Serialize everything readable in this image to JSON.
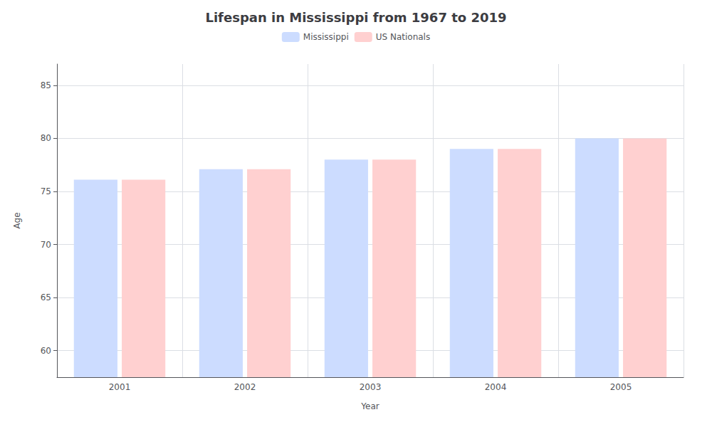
{
  "chart_data": {
    "type": "bar",
    "title": "Lifespan in Mississippi from 1967 to 2019",
    "xlabel": "Year",
    "ylabel": "Age",
    "categories": [
      "2001",
      "2002",
      "2003",
      "2004",
      "2005"
    ],
    "series": [
      {
        "name": "Mississippi",
        "color": "#ccdcff",
        "values": [
          76.1,
          77.1,
          78.0,
          79.0,
          80.0
        ]
      },
      {
        "name": "US Nationals",
        "color": "#ffd0d0",
        "values": [
          76.1,
          77.1,
          78.0,
          79.0,
          80.0
        ]
      }
    ],
    "ylim": [
      57.5,
      87
    ],
    "yticks": [
      60,
      65,
      70,
      75,
      80,
      85
    ],
    "grid": true,
    "legend": "top"
  }
}
